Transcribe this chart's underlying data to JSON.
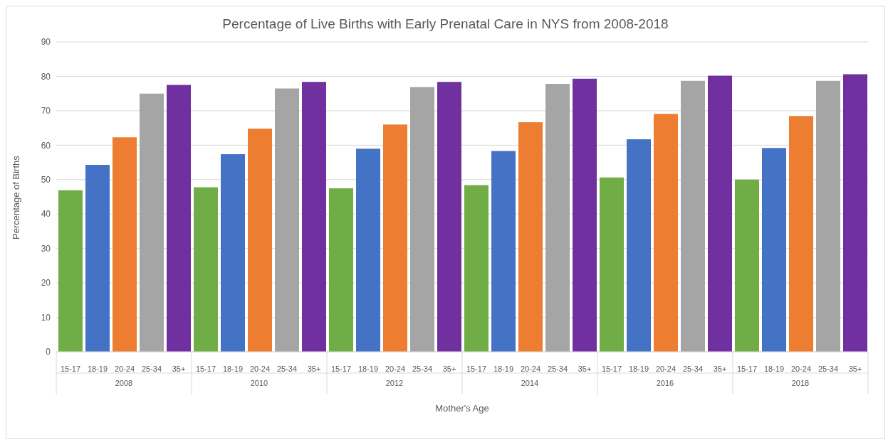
{
  "chart_data": {
    "type": "bar",
    "title": "Percentage of Live Births with Early Prenatal Care in NYS from 2008-2018",
    "xlabel": "Mother's Age",
    "ylabel": "Percentage of Births",
    "categories": [
      "2008",
      "2010",
      "2012",
      "2014",
      "2016",
      "2018"
    ],
    "series": [
      {
        "name": "15-17",
        "color": "#70ad47",
        "values": [
          46.9,
          47.8,
          47.5,
          48.4,
          50.6,
          50.0
        ]
      },
      {
        "name": "18-19",
        "color": "#4472c4",
        "values": [
          54.3,
          57.4,
          59.0,
          58.3,
          61.7,
          59.2
        ]
      },
      {
        "name": "20-24",
        "color": "#ed7d31",
        "values": [
          62.3,
          64.8,
          66.0,
          66.7,
          69.1,
          68.5
        ]
      },
      {
        "name": "25-34",
        "color": "#a5a5a5",
        "values": [
          75.0,
          76.5,
          76.9,
          77.8,
          78.7,
          78.7
        ]
      },
      {
        "name": "35+",
        "color": "#7030a0",
        "values": [
          77.5,
          78.4,
          78.4,
          79.3,
          80.2,
          80.6
        ]
      }
    ],
    "ylim": [
      0,
      90
    ],
    "yticks": [
      0,
      10,
      20,
      30,
      40,
      50,
      60,
      70,
      80,
      90
    ],
    "grid": "y",
    "legend": false
  }
}
